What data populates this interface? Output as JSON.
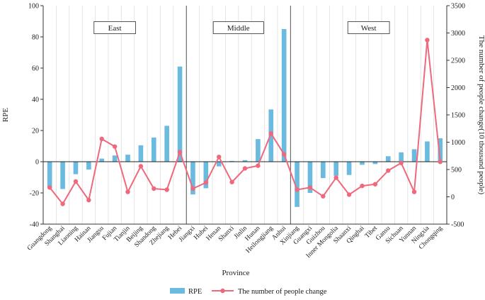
{
  "chart_data": {
    "type": "bar+line",
    "xlabel": "Province",
    "ylabel_left": "RPE",
    "ylabel_right": "The number of people change(10 thousand people)",
    "ylim_left": [
      -40,
      100
    ],
    "yticks_left": [
      -40,
      -20,
      0,
      20,
      40,
      60,
      80,
      100
    ],
    "ylim_right": [
      -500,
      3500
    ],
    "yticks_right": [
      -500,
      0,
      500,
      1000,
      1500,
      2000,
      2500,
      3000,
      3500
    ],
    "regions": [
      "East",
      "Middle",
      "West"
    ],
    "categories": [
      "Guangdong",
      "Shanghai",
      "Liaoning",
      "Hainan",
      "Jiangsu",
      "Fujian",
      "Tianjin",
      "Beijing",
      "Shandong",
      "Zhejiang",
      "Hebei",
      "Jiangxi",
      "Hubei",
      "Henan",
      "Shanxi",
      "Jinlin",
      "Hunan",
      "Heilongjiang",
      "Anhui",
      "Xinjiang",
      "Guangxi",
      "Guizhou",
      "Inner Mongolia",
      "Shaanxi",
      "Qinghai",
      "Tibet",
      "Gansu",
      "Sichuan",
      "Yunnan",
      "Ningxia",
      "Chongqing"
    ],
    "category_region": [
      0,
      0,
      0,
      0,
      0,
      0,
      0,
      0,
      0,
      0,
      0,
      1,
      1,
      1,
      1,
      1,
      1,
      1,
      1,
      2,
      2,
      2,
      2,
      2,
      2,
      2,
      2,
      2,
      2,
      2,
      2
    ],
    "series": [
      {
        "name": "RPE",
        "kind": "bar",
        "axis": "left",
        "color": "#6bbbe0",
        "values": [
          -17,
          -17.5,
          -8,
          -5,
          2,
          4,
          4.5,
          10.5,
          15.5,
          23,
          61,
          -21,
          -17,
          -3,
          0.5,
          1,
          14.5,
          33.5,
          85,
          -29,
          -20,
          -10.5,
          -9,
          -8.5,
          -2,
          -1.5,
          3.5,
          6,
          8,
          13,
          15
        ]
      },
      {
        "name": "The number of people change",
        "kind": "line",
        "axis": "right",
        "color": "#f0687c",
        "values": [
          170,
          -130,
          280,
          -60,
          1060,
          920,
          90,
          560,
          150,
          130,
          820,
          150,
          260,
          730,
          270,
          520,
          570,
          1160,
          780,
          130,
          170,
          10,
          350,
          40,
          200,
          230,
          480,
          620,
          90,
          2870,
          640
        ]
      }
    ]
  }
}
